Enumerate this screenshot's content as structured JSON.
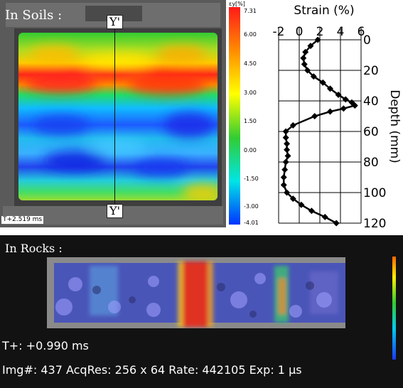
{
  "soils": {
    "title": "In Soils :",
    "section_marker": "Y'",
    "time_label": "T+2.519 ms",
    "colorbar": {
      "unit_label": "εy[%]",
      "ticks": [
        "7.31",
        "6.00",
        "4.50",
        "3.00",
        "1.50",
        "0.00",
        "-1.50",
        "-3.00",
        "-4.01"
      ],
      "colors": [
        "#ff1a1a",
        "#ff8c00",
        "#ffff00",
        "#33cc33",
        "#00e5e5",
        "#0033ff"
      ]
    }
  },
  "rocks": {
    "title": "In Rocks :",
    "time_label": "T+: +0.990 ms",
    "info_line": "Img#:  437  AcqRes:  256 x  64  Rate: 442105  Exp:  1 µs"
  },
  "chart_data": {
    "type": "line",
    "xlabel": "Strain (%)",
    "ylabel": "Depth (mm)",
    "xlim": [
      -2,
      6
    ],
    "ylim": [
      0,
      120
    ],
    "x_ticks": [
      "-2",
      "0",
      "2",
      "4",
      "6"
    ],
    "y_ticks": [
      "0",
      "20",
      "40",
      "60",
      "80",
      "100",
      "120"
    ],
    "marker": "diamond",
    "series": [
      {
        "x": [
          1.8,
          1.1,
          0.6,
          0.4,
          0.5,
          0.8,
          1.4,
          2.3,
          3.0,
          3.8,
          4.5,
          5.1,
          5.4,
          4.3,
          3.0,
          1.5,
          -0.6,
          -1.3,
          -1.3,
          -1.2,
          -1.2,
          -1.1,
          -1.3,
          -1.4,
          -1.5,
          -1.5,
          -1.2,
          -0.6,
          0.2,
          1.2,
          2.5,
          3.6
        ],
        "y": [
          0,
          4,
          8,
          12,
          16,
          20,
          24,
          28,
          32,
          36,
          39,
          41,
          43,
          45,
          47,
          50,
          56,
          60,
          64,
          68,
          72,
          76,
          80,
          85,
          90,
          95,
          100,
          104,
          108,
          112,
          116,
          120
        ]
      }
    ]
  }
}
